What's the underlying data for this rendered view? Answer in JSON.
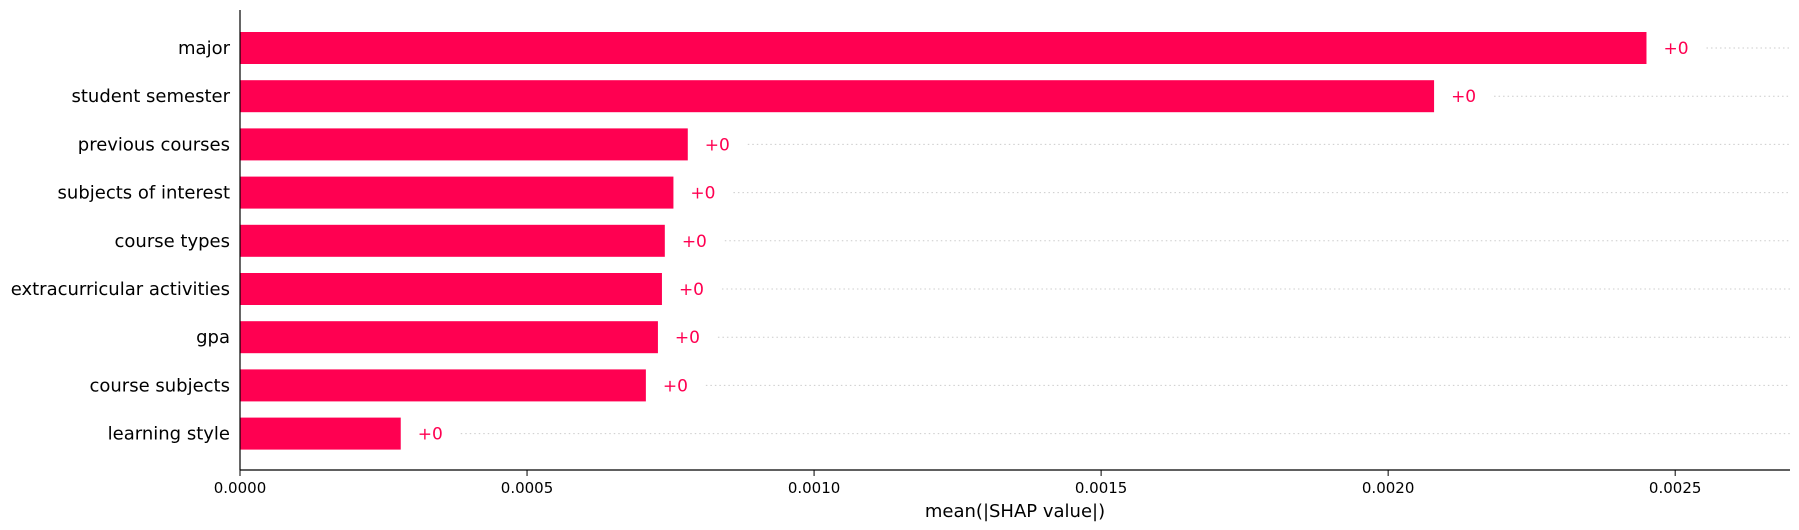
{
  "chart_data": {
    "type": "bar",
    "orientation": "horizontal",
    "categories": [
      "major",
      "student semester",
      "previous courses",
      "subjects of interest",
      "course types",
      "extracurricular activities",
      "gpa",
      "course subjects",
      "learning style"
    ],
    "values": [
      0.00245,
      0.00208,
      0.00078,
      0.000755,
      0.00074,
      0.000735,
      0.000728,
      0.000707,
      0.00028
    ],
    "data_labels": [
      "+0",
      "+0",
      "+0",
      "+0",
      "+0",
      "+0",
      "+0",
      "+0",
      "+0"
    ],
    "xlabel": "mean(|SHAP value|)",
    "xlim": [
      0,
      0.0027
    ],
    "xticks": [
      0,
      0.0005,
      0.001,
      0.0015,
      0.002,
      0.0025
    ],
    "xtick_labels": [
      "0.0000",
      "0.0005",
      "0.0010",
      "0.0015",
      "0.0020",
      "0.0025"
    ],
    "grid": "dotted horizontal guide lines after bars",
    "bar_color": "#ff0051",
    "label_color": "#ff0051",
    "guide_color": "#cccccc"
  }
}
